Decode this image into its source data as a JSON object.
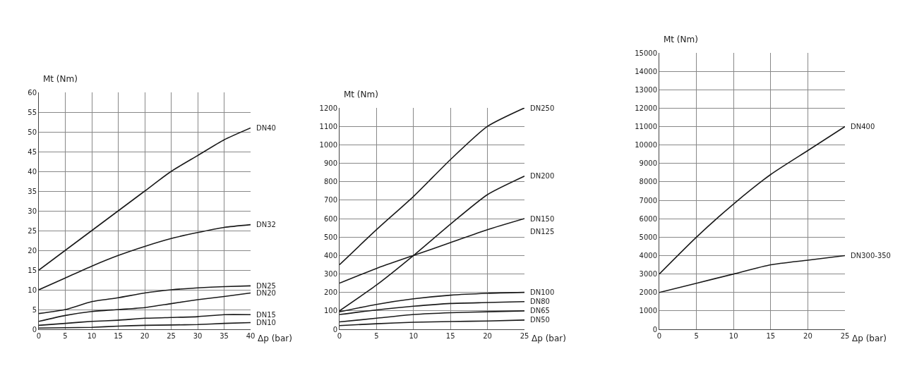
{
  "chart_data": [
    {
      "type": "line",
      "xlabel": "Δp (bar)",
      "ylabel": "Mt (Nm)",
      "x": [
        0,
        5,
        10,
        15,
        20,
        25,
        30,
        35,
        40
      ],
      "xlim": [
        0,
        40
      ],
      "xticks": [
        0,
        5,
        10,
        15,
        20,
        25,
        30,
        35,
        40
      ],
      "ylim": [
        0,
        60
      ],
      "yticks": [
        0,
        5,
        10,
        15,
        20,
        25,
        30,
        35,
        40,
        45,
        50,
        55,
        60
      ],
      "grid": true,
      "legend": false,
      "marker": "none",
      "line_style": "solid",
      "series": [
        {
          "name": "DN40",
          "color": "#1a1a1a",
          "values": [
            15,
            20,
            25,
            30,
            35,
            40,
            44,
            48,
            51
          ]
        },
        {
          "name": "DN32",
          "color": "#1a1a1a",
          "values": [
            10,
            13,
            16,
            18.7,
            21,
            23,
            24.5,
            25.8,
            26.5
          ]
        },
        {
          "name": "DN25",
          "color": "#1a1a1a",
          "values": [
            4,
            5,
            7,
            8,
            9.2,
            10,
            10.5,
            10.8,
            11
          ]
        },
        {
          "name": "DN20",
          "color": "#1a1a1a",
          "values": [
            2,
            3.5,
            4.5,
            5,
            5.5,
            6.5,
            7.5,
            8.3,
            9.2
          ]
        },
        {
          "name": "DN15",
          "color": "#1a1a1a",
          "values": [
            1,
            1.5,
            2,
            2.3,
            2.8,
            3,
            3.2,
            3.7,
            3.7
          ]
        },
        {
          "name": "DN10",
          "color": "#1a1a1a",
          "values": [
            0.3,
            0.4,
            0.5,
            0.8,
            1,
            1.1,
            1.2,
            1.5,
            1.7
          ]
        }
      ]
    },
    {
      "type": "line",
      "xlabel": "Δp (bar)",
      "ylabel": "Mt (Nm)",
      "x": [
        0,
        5,
        10,
        15,
        20,
        25
      ],
      "xlim": [
        0,
        25
      ],
      "xticks": [
        0,
        5,
        10,
        15,
        20,
        25
      ],
      "ylim": [
        0,
        1200
      ],
      "yticks": [
        0,
        100,
        200,
        300,
        400,
        500,
        600,
        700,
        800,
        900,
        1000,
        1100,
        1200
      ],
      "grid": true,
      "legend": false,
      "marker": "none",
      "line_style": "solid",
      "annotations": [
        {
          "text": "DN125",
          "x": 25,
          "y": 600
        }
      ],
      "series": [
        {
          "name": "DN250",
          "color": "#1a1a1a",
          "values": [
            350,
            540,
            720,
            920,
            1100,
            1200
          ]
        },
        {
          "name": "DN200",
          "color": "#1a1a1a",
          "values": [
            100,
            240,
            400,
            570,
            730,
            830
          ]
        },
        {
          "name": "DN150",
          "color": "#1a1a1a",
          "values": [
            250,
            330,
            400,
            470,
            540,
            600
          ]
        },
        {
          "name": "DN100",
          "color": "#1a1a1a",
          "values": [
            95,
            135,
            165,
            185,
            195,
            200
          ]
        },
        {
          "name": "DN80",
          "color": "#1a1a1a",
          "values": [
            80,
            105,
            125,
            140,
            145,
            150
          ]
        },
        {
          "name": "DN65",
          "color": "#1a1a1a",
          "values": [
            40,
            60,
            80,
            90,
            95,
            100
          ]
        },
        {
          "name": "DN50",
          "color": "#1a1a1a",
          "values": [
            20,
            30,
            38,
            42,
            45,
            50
          ]
        }
      ]
    },
    {
      "type": "line",
      "xlabel": "Δp (bar)",
      "ylabel": "Mt (Nm)",
      "x": [
        0,
        5,
        10,
        15,
        20,
        25
      ],
      "xlim": [
        0,
        25
      ],
      "xticks": [
        0,
        5,
        10,
        15,
        20,
        25
      ],
      "ylim": [
        0,
        15000
      ],
      "yticks": [
        0,
        1000,
        2000,
        3000,
        4000,
        5000,
        6000,
        7000,
        8000,
        9000,
        10000,
        11000,
        12000,
        13000,
        14000,
        15000
      ],
      "grid": true,
      "legend": false,
      "marker": "none",
      "line_style": "solid",
      "series": [
        {
          "name": "DN400",
          "color": "#1a1a1a",
          "values": [
            3000,
            5000,
            6800,
            8400,
            9700,
            11000
          ]
        },
        {
          "name": "DN300-350",
          "color": "#1a1a1a",
          "values": [
            2000,
            2500,
            3000,
            3500,
            3750,
            4000
          ]
        }
      ]
    }
  ]
}
